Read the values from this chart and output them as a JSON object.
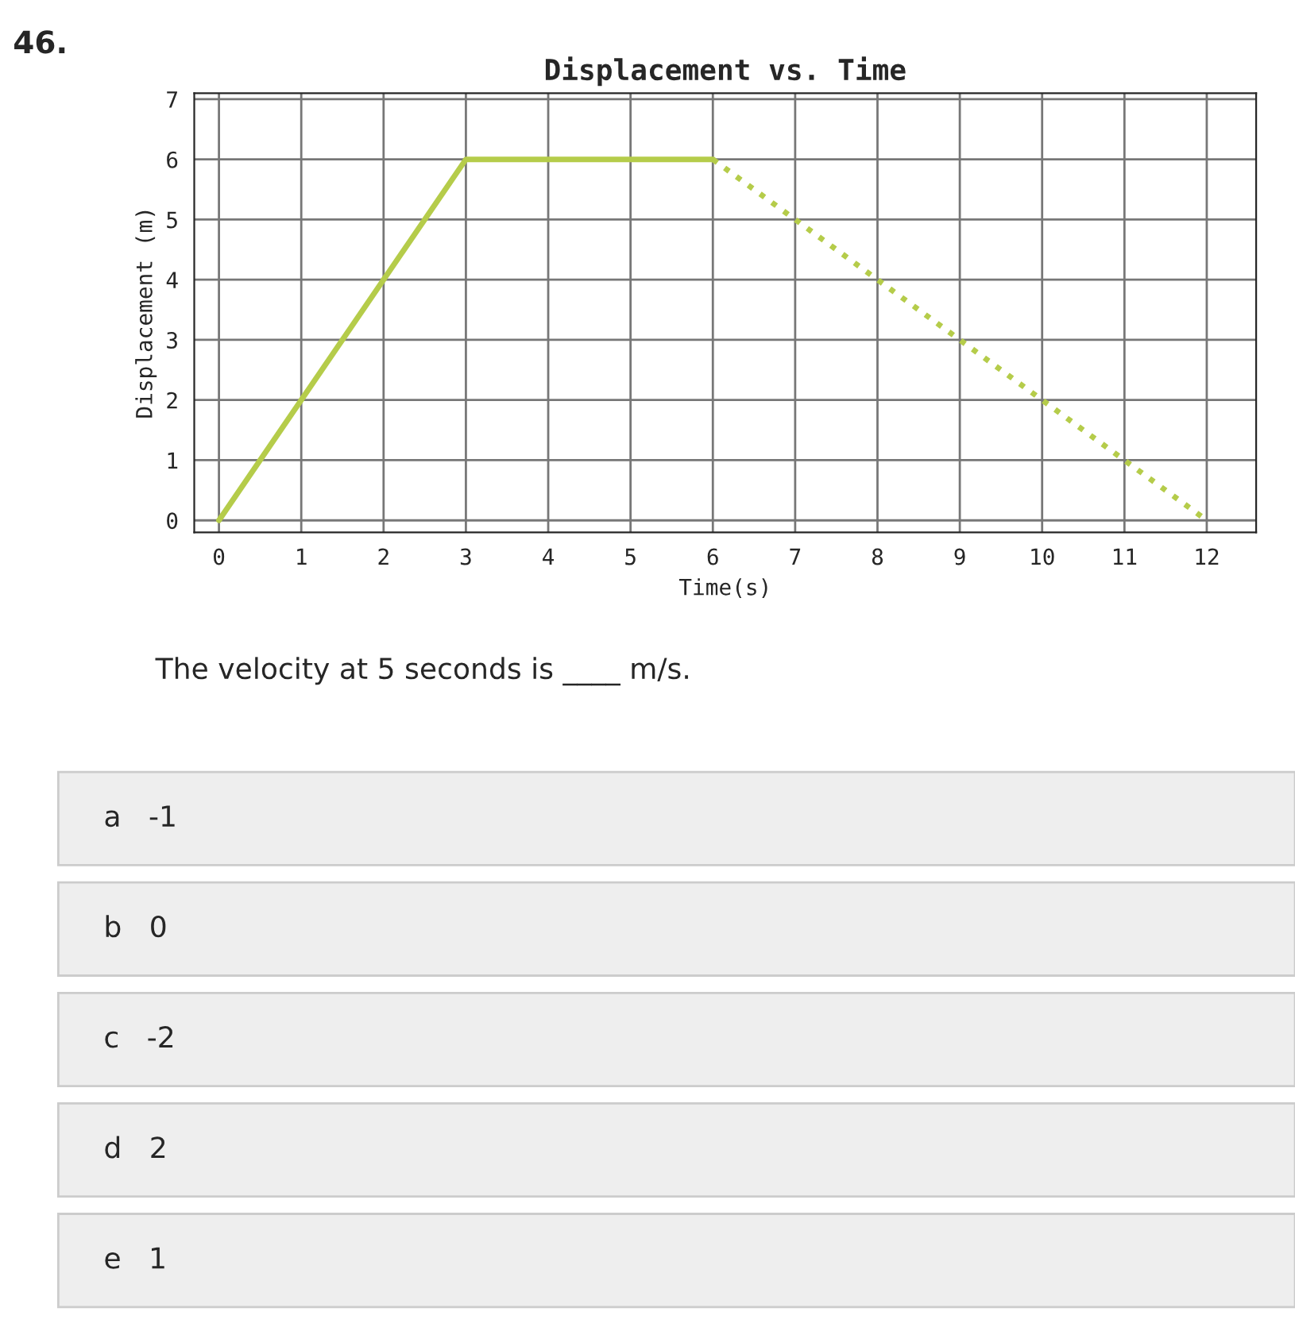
{
  "chart_data": {
    "type": "line",
    "title": "Displacement vs. Time",
    "xlabel": "Time(s)",
    "ylabel": "Displacement (m)",
    "series": [
      {
        "color": "#b5cc4a",
        "x": [
          0,
          3,
          6
        ],
        "values": [
          0,
          6,
          6
        ],
        "line_style": "solid"
      },
      {
        "color": "#b5cc4a",
        "x": [
          6,
          12
        ],
        "values": [
          6,
          0
        ],
        "line_style": "dotted"
      }
    ],
    "xlim": [
      -0.3,
      12.6
    ],
    "ylim": [
      -0.2,
      7.1
    ],
    "xticks": [
      0,
      1,
      2,
      3,
      4,
      5,
      6,
      7,
      8,
      9,
      10,
      11,
      12
    ],
    "yticks": [
      0,
      1,
      2,
      3,
      4,
      5,
      6,
      7
    ],
    "grid": true,
    "legend": false,
    "annotations": [
      "46.",
      "The velocity at 5 seconds is ____ m/s.",
      "a   -1",
      "b   0",
      "c   -2",
      "d   2",
      "e   1"
    ]
  }
}
